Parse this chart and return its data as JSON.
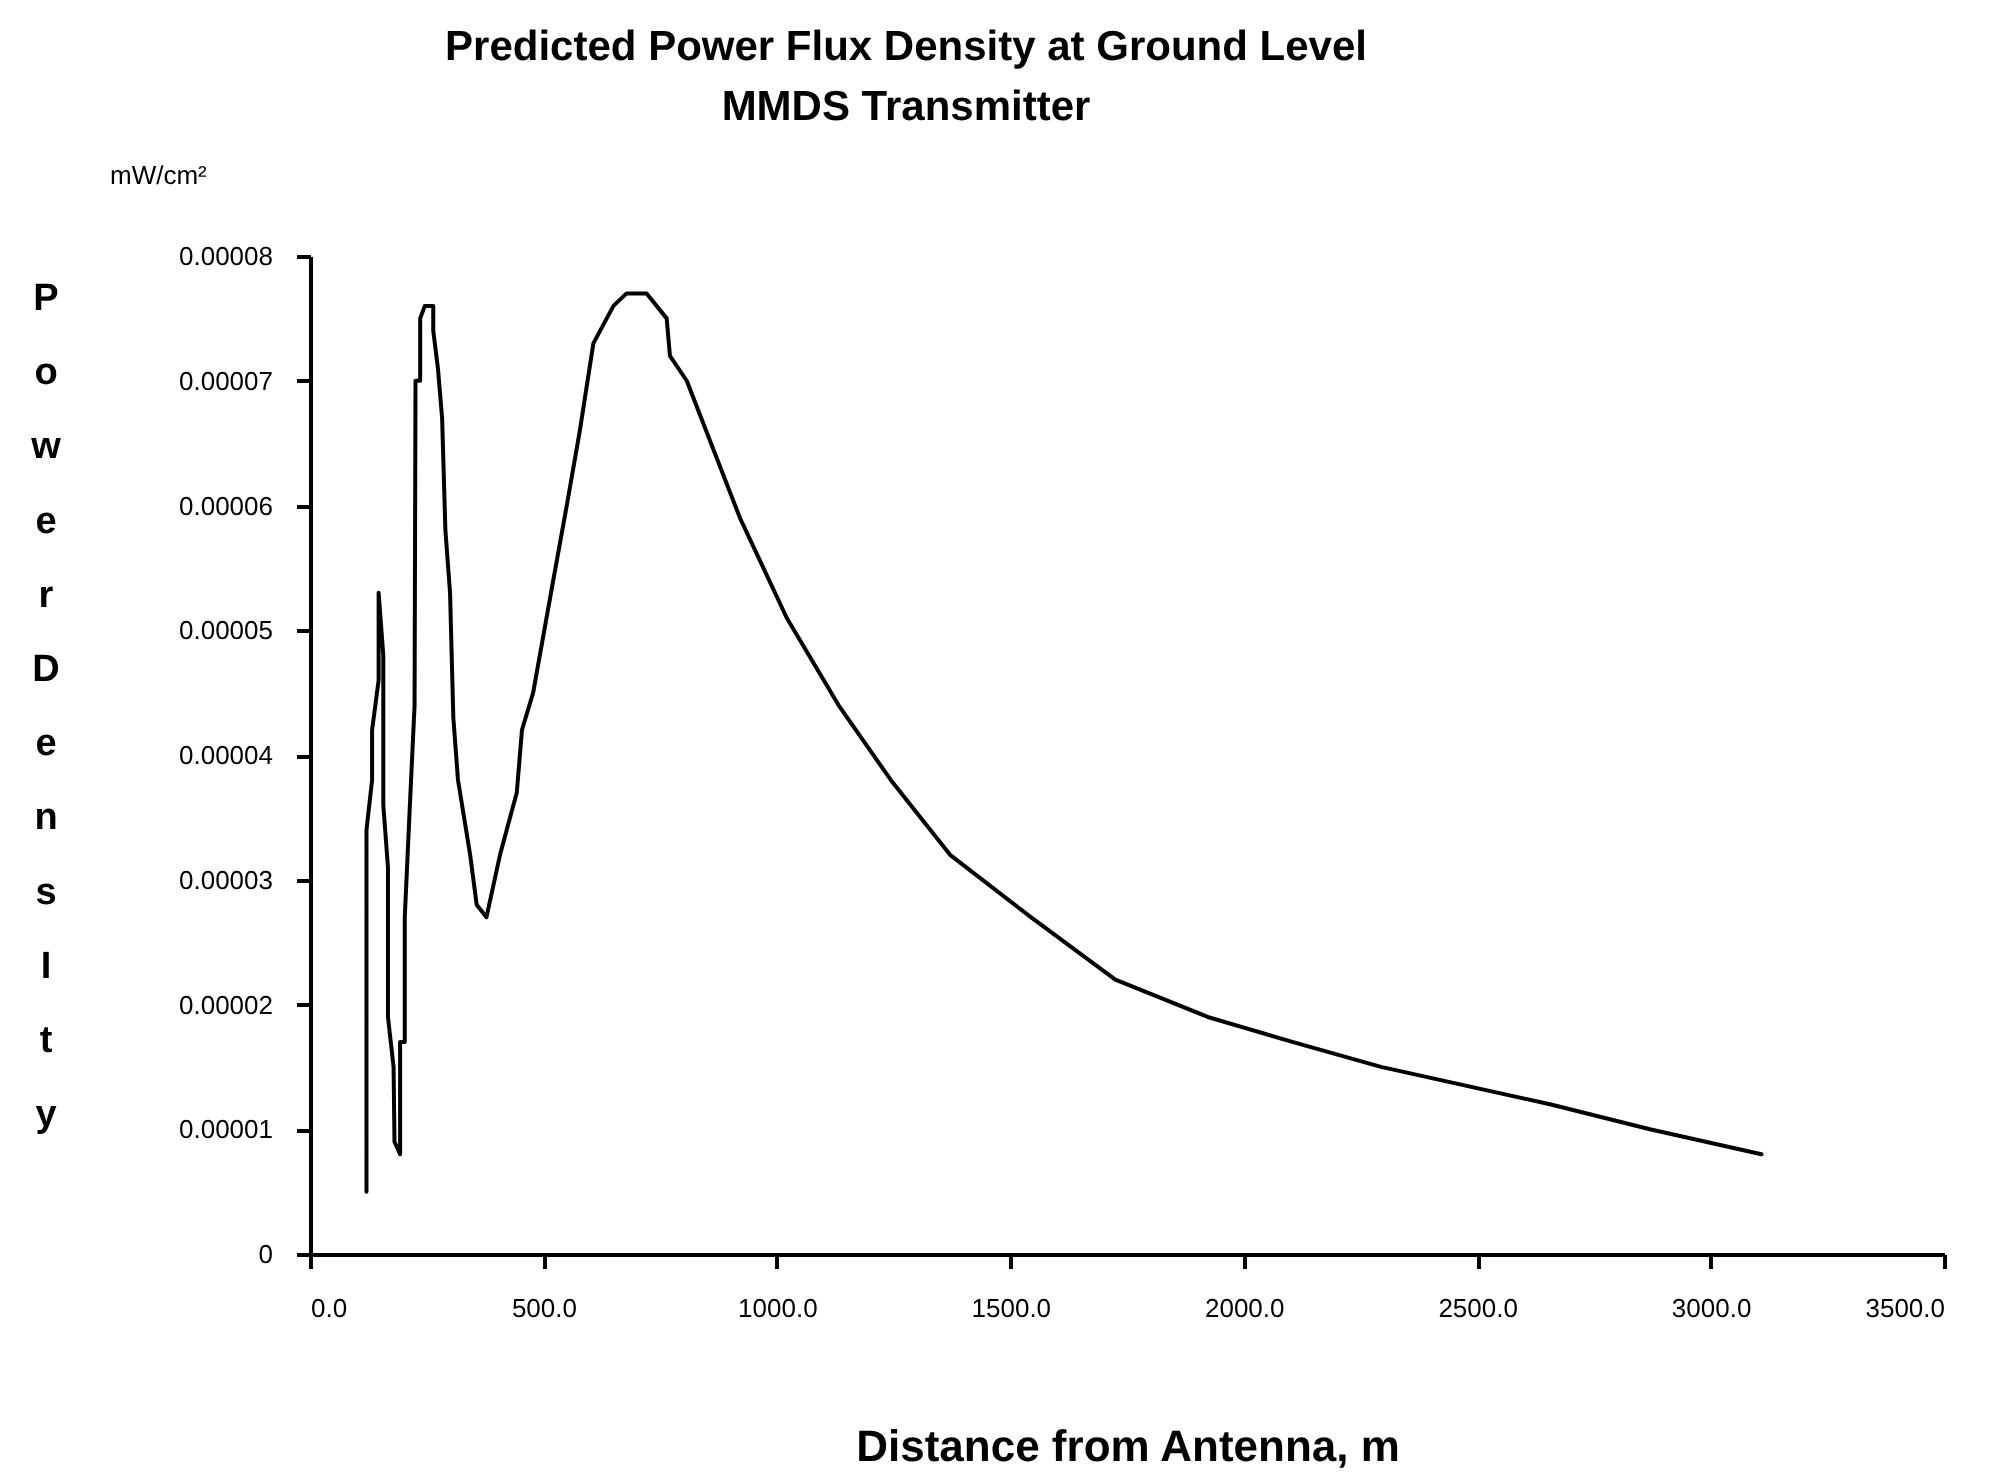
{
  "chart_data": {
    "type": "line",
    "title": "Predicted Power Flux Density at Ground Level",
    "subtitle": "MMDS Transmitter",
    "xlabel": "Distance from Antenna, m",
    "ylabel": "Power DensIty",
    "annotations": [
      "mW/cm²"
    ],
    "x": [
      121,
      121,
      133,
      133,
      147,
      147,
      157,
      157,
      167,
      167,
      179,
      181,
      193,
      193,
      203,
      203,
      214,
      224,
      226,
      236,
      236,
      246,
      264,
      264,
      274,
      283,
      290,
      300,
      307,
      317,
      343,
      357,
      378,
      407,
      443,
      454,
      478,
      521,
      550,
      578,
      607,
      650,
      678,
      721,
      764,
      771,
      807,
      921,
      1021,
      1132,
      1244,
      1371,
      1544,
      1725,
      1923,
      2104,
      2294,
      2656,
      2870,
      3109
    ],
    "series": [
      {
        "color": "#000000",
        "values": [
          5e-06,
          3.4e-05,
          3.8e-05,
          4.2e-05,
          4.6e-05,
          5.3e-05,
          4.8e-05,
          3.6e-05,
          3.1e-05,
          1.9e-05,
          1.5e-05,
          9e-06,
          8e-06,
          1.7e-05,
          1.7e-05,
          2.7e-05,
          3.6e-05,
          4.4e-05,
          7e-05,
          7e-05,
          7.5e-05,
          7.6e-05,
          7.6e-05,
          7.4e-05,
          7.1e-05,
          6.7e-05,
          5.8e-05,
          5.3e-05,
          4.3e-05,
          3.8e-05,
          3.2e-05,
          2.8e-05,
          2.7e-05,
          3.2e-05,
          3.7e-05,
          4.2e-05,
          4.5e-05,
          5.4e-05,
          6e-05,
          6.6e-05,
          7.3e-05,
          7.6e-05,
          7.7e-05,
          7.7e-05,
          7.5e-05,
          7.2e-05,
          7e-05,
          5.9e-05,
          5.1e-05,
          4.4e-05,
          3.8e-05,
          3.2e-05,
          2.7e-05,
          2.2e-05,
          1.9e-05,
          1.7e-05,
          1.5e-05,
          1.2e-05,
          1e-05,
          8e-06
        ]
      }
    ],
    "xlim": [
      0,
      3500
    ],
    "xticks": [
      {
        "value": 0,
        "label": "0.0"
      },
      {
        "value": 500,
        "label": "500.0"
      },
      {
        "value": 1000,
        "label": "1000.0"
      },
      {
        "value": 1500,
        "label": "1500.0"
      },
      {
        "value": 2000,
        "label": "2000.0"
      },
      {
        "value": 2500,
        "label": "2500.0"
      },
      {
        "value": 3000,
        "label": "3000.0"
      },
      {
        "value": 3500,
        "label": "3500.0"
      }
    ],
    "ylim": [
      0,
      8e-05
    ],
    "yticks": [
      0,
      {
        "value": 1e-05,
        "label": "0.00001"
      },
      {
        "value": 2e-05,
        "label": "0.00002"
      },
      {
        "value": 3e-05,
        "label": "0.00003"
      },
      {
        "value": 4e-05,
        "label": "0.00004"
      },
      {
        "value": 5e-05,
        "label": "0.00005"
      },
      {
        "value": 6e-05,
        "label": "0.00006"
      },
      {
        "value": 7e-05,
        "label": "0.00007"
      },
      {
        "value": 8e-05,
        "label": "0.00008"
      }
    ],
    "grid": false,
    "legend": false,
    "marker": "none",
    "line_style": "solid"
  }
}
